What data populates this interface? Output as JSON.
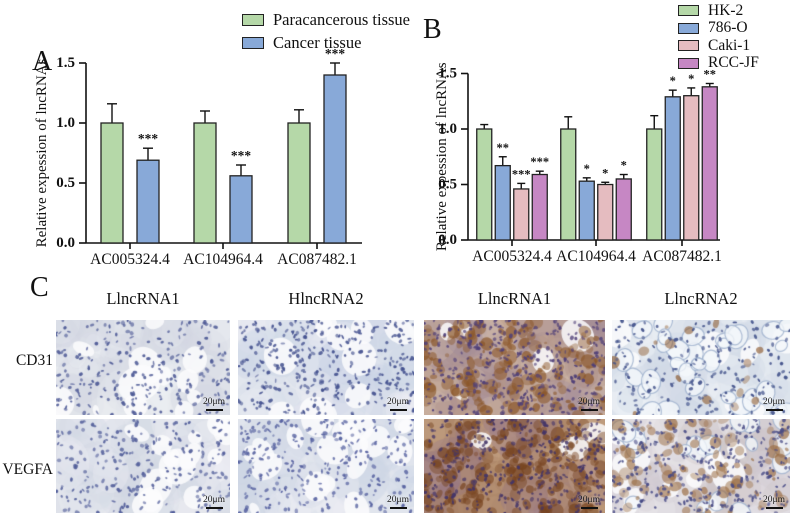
{
  "panels": {
    "a_label": "A",
    "b_label": "B",
    "c_label": "C"
  },
  "chart_data": [
    {
      "id": "A",
      "type": "bar",
      "title": "",
      "xlabel": "",
      "ylabel": "Relative expession of lncRNAs",
      "categories": [
        "AC005324.4",
        "AC104964.4",
        "AC087482.1"
      ],
      "yticks": [
        0.0,
        0.5,
        1.0,
        1.5
      ],
      "ylim": [
        0,
        1.5
      ],
      "grid": false,
      "legend_position": "top-right",
      "series": [
        {
          "name": "Paracancerous tissue",
          "color": "#b5d8a8",
          "values": [
            1.0,
            1.0,
            1.0
          ],
          "errors": [
            0.16,
            0.1,
            0.11
          ],
          "sig": [
            "",
            "",
            ""
          ]
        },
        {
          "name": "Cancer tissue",
          "color": "#88a9d8",
          "values": [
            0.69,
            0.56,
            1.4
          ],
          "errors": [
            0.1,
            0.09,
            0.1
          ],
          "sig": [
            "***",
            "***",
            "***"
          ]
        }
      ]
    },
    {
      "id": "B",
      "type": "bar",
      "title": "",
      "xlabel": "",
      "ylabel": "Relative expession of lncRNAs",
      "categories": [
        "AC005324.4",
        "AC104964.4",
        "AC087482.1"
      ],
      "yticks": [
        0.0,
        0.5,
        1.0,
        1.5
      ],
      "ylim": [
        0,
        1.5
      ],
      "grid": false,
      "legend_position": "top-right",
      "series": [
        {
          "name": "HK-2",
          "color": "#b5d8a8",
          "values": [
            1.0,
            1.0,
            1.0
          ],
          "errors": [
            0.04,
            0.11,
            0.12
          ],
          "sig": [
            "",
            "",
            ""
          ]
        },
        {
          "name": "786-O",
          "color": "#88a9d8",
          "values": [
            0.67,
            0.53,
            1.29
          ],
          "errors": [
            0.08,
            0.03,
            0.06
          ],
          "sig": [
            "**",
            "*",
            "*"
          ]
        },
        {
          "name": "Caki-1",
          "color": "#e5bcc0",
          "values": [
            0.46,
            0.5,
            1.3
          ],
          "errors": [
            0.05,
            0.02,
            0.07
          ],
          "sig": [
            "***",
            "*",
            "*"
          ]
        },
        {
          "name": "RCC-JF",
          "color": "#c687c4",
          "values": [
            0.59,
            0.55,
            1.38
          ],
          "errors": [
            0.03,
            0.04,
            0.03
          ],
          "sig": [
            "***",
            "*",
            "**"
          ]
        }
      ]
    }
  ],
  "panel_c": {
    "column_headers": [
      "LlncRNA1",
      "HlncRNA2",
      "LlncRNA1",
      "LlncRNA2"
    ],
    "row_labels": [
      "CD31",
      "VEGFA"
    ],
    "scale_bar_label": "20μm",
    "tiles": [
      {
        "name": "ihc-cd31-llncrna1",
        "row": 0,
        "col": 0,
        "appearance": {
          "base": "#e6e8ed",
          "mottle": [
            "#d6dbe6",
            "#f0f1f4",
            "#cfd5e2"
          ],
          "nuclei": "#4e5a96",
          "nuclei_count": 260,
          "lumens": 12,
          "rings": 0,
          "brown": "#8a5527",
          "brown_count": 0
        }
      },
      {
        "name": "ihc-cd31-hlncrna2",
        "row": 0,
        "col": 1,
        "appearance": {
          "base": "#e2e6ee",
          "mottle": [
            "#d2d9e7",
            "#eef0f5",
            "#c8d1e3"
          ],
          "nuclei": "#44518f",
          "nuclei_count": 330,
          "lumens": 10,
          "rings": 0,
          "brown": "#8a5527",
          "brown_count": 0
        }
      },
      {
        "name": "ihc-cd31-llncrna1-t",
        "row": 0,
        "col": 2,
        "appearance": {
          "base": "#c3a795",
          "mottle": [
            "#ab8f87",
            "#d4bfae",
            "#9e8b9e"
          ],
          "nuclei": "#4f3f78",
          "nuclei_count": 380,
          "lumens": 5,
          "rings": 0,
          "brown": "#8a5527",
          "brown_count": 170
        }
      },
      {
        "name": "ihc-cd31-llncrna2",
        "row": 0,
        "col": 3,
        "appearance": {
          "base": "#e3e8ef",
          "mottle": [
            "#d3dbe8",
            "#f2f4f7",
            "#cdd7e6"
          ],
          "nuclei": "#3e4e88",
          "nuclei_count": 200,
          "lumens": 8,
          "rings": 34,
          "brown": "#8a5527",
          "brown_count": 16
        }
      },
      {
        "name": "ihc-vegfa-llncrna1",
        "row": 1,
        "col": 0,
        "appearance": {
          "base": "#e4e6ec",
          "mottle": [
            "#d5dae6",
            "#eff0f4",
            "#ccd3e2"
          ],
          "nuclei": "#525e9a",
          "nuclei_count": 250,
          "lumens": 14,
          "rings": 0,
          "brown": "#8a5527",
          "brown_count": 0
        }
      },
      {
        "name": "ihc-vegfa-hlncrna2",
        "row": 1,
        "col": 1,
        "appearance": {
          "base": "#e1e5ed",
          "mottle": [
            "#d1d8e6",
            "#eef0f5",
            "#cbd3e4"
          ],
          "nuclei": "#5661a0",
          "nuclei_count": 280,
          "lumens": 18,
          "rings": 0,
          "brown": "#8a5527",
          "brown_count": 0
        }
      },
      {
        "name": "ihc-vegfa-llncrna1-t",
        "row": 1,
        "col": 2,
        "appearance": {
          "base": "#b5906f",
          "mottle": [
            "#a37b62",
            "#caa98a",
            "#93758c"
          ],
          "nuclei": "#433468",
          "nuclei_count": 340,
          "lumens": 4,
          "rings": 0,
          "brown": "#76431f",
          "brown_count": 230
        }
      },
      {
        "name": "ihc-vegfa-llncrna2",
        "row": 1,
        "col": 3,
        "appearance": {
          "base": "#dcd8de",
          "mottle": [
            "#cfc9d4",
            "#edeaee",
            "#c9bfc0"
          ],
          "nuclei": "#474a85",
          "nuclei_count": 300,
          "lumens": 16,
          "rings": 18,
          "brown": "#9a6c42",
          "brown_count": 100
        }
      }
    ]
  }
}
